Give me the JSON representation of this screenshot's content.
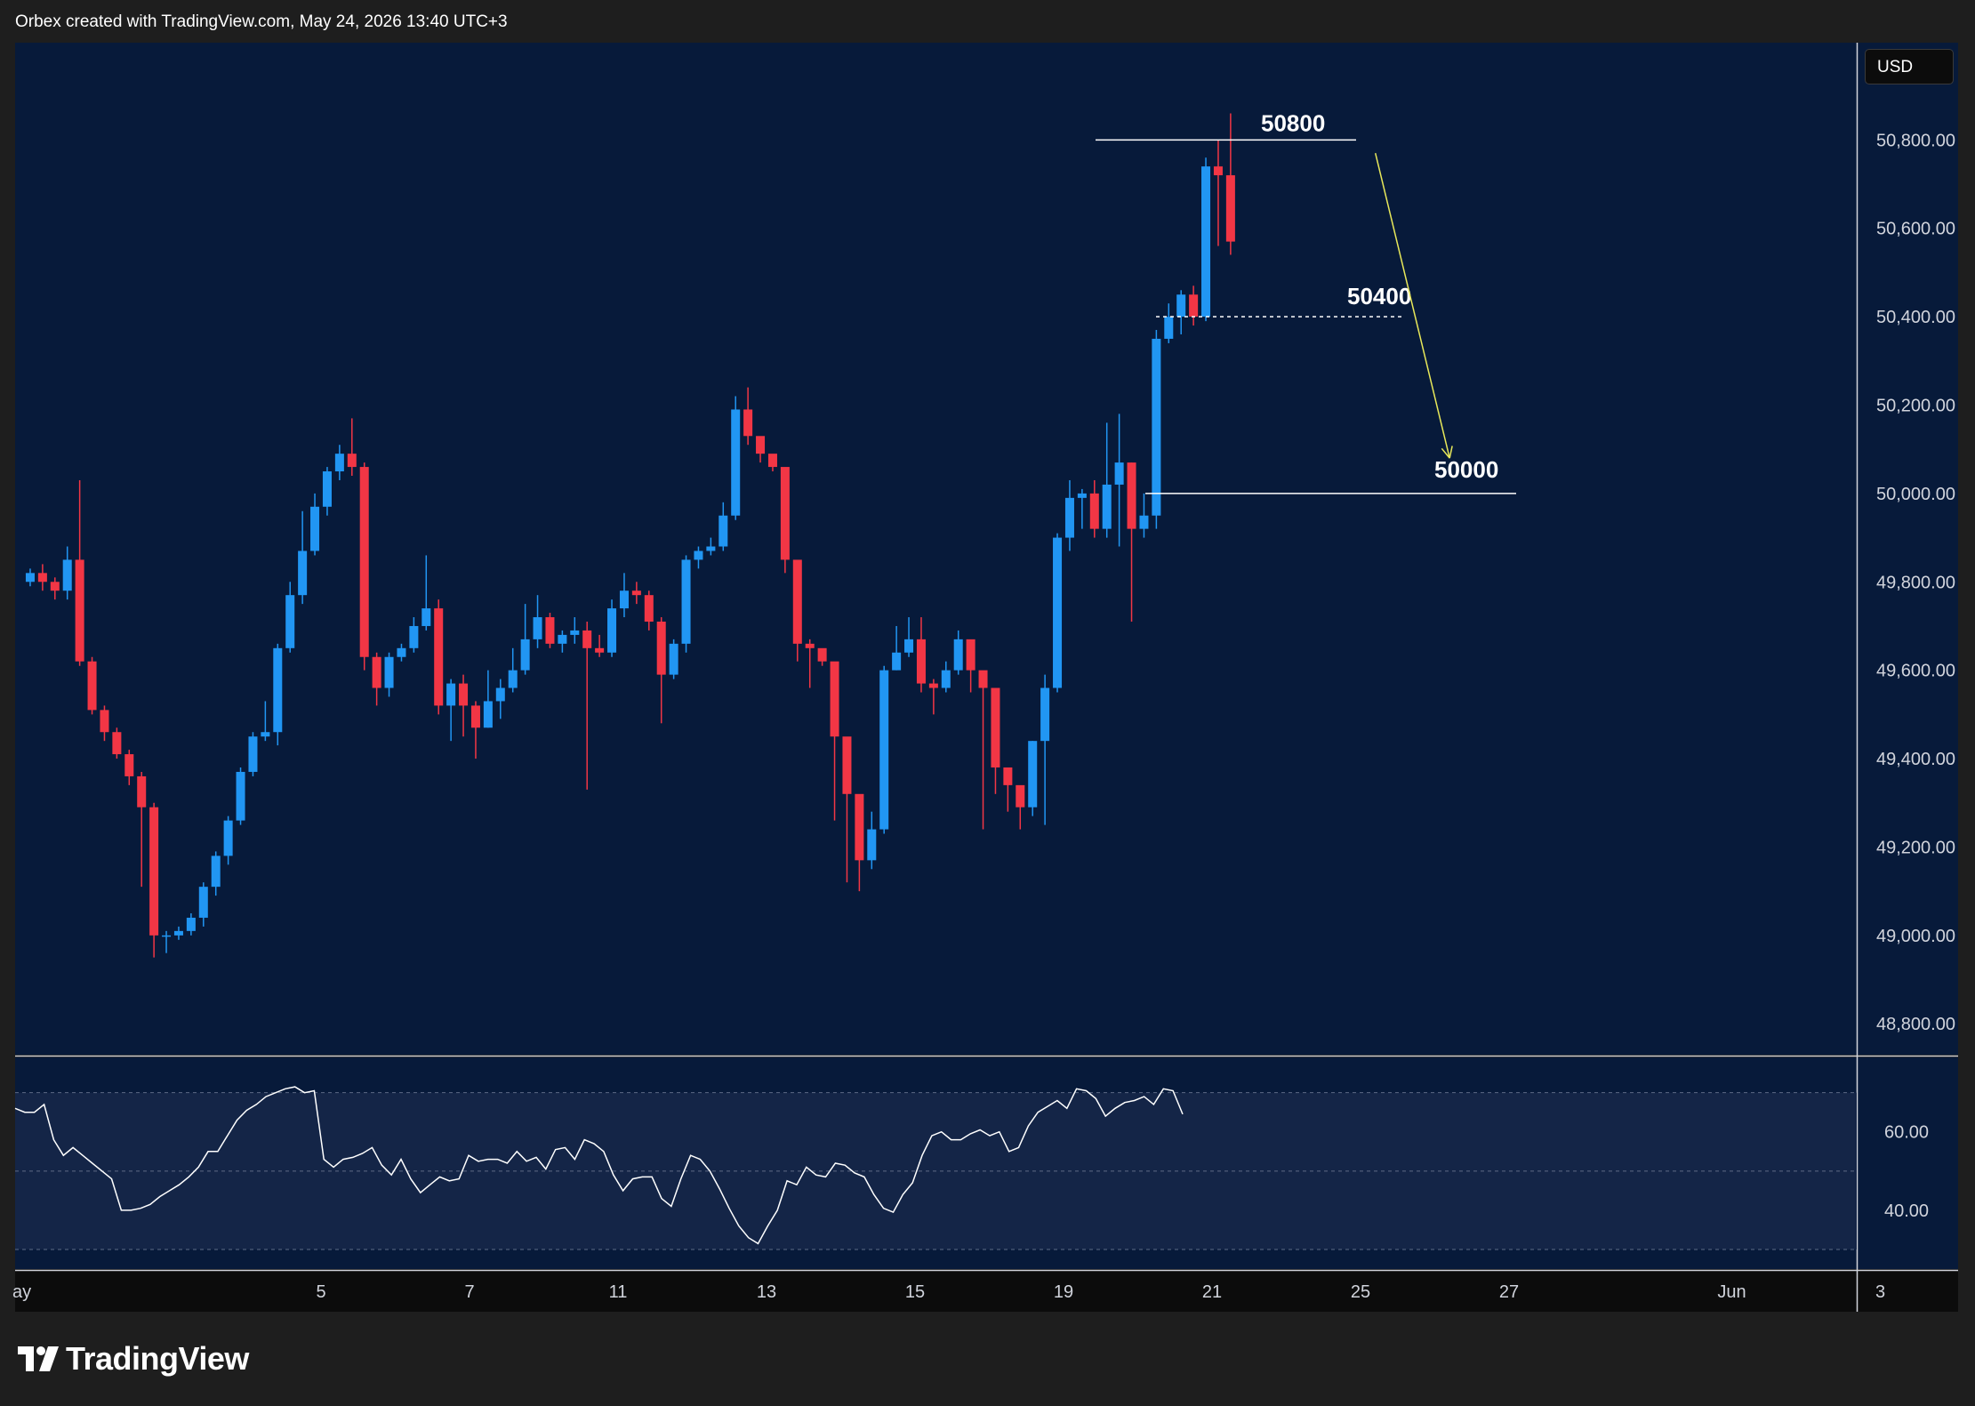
{
  "header": {
    "caption": "Orbex created with TradingView.com, May 24, 2026 13:40 UTC+3"
  },
  "currency": {
    "label": "USD"
  },
  "brand": {
    "name": "TradingView",
    "logo_icon": "tradingview-logo-icon"
  },
  "colors": {
    "background": "#1e1e1e",
    "pane": "#071a3a",
    "rsi_band": "#142547",
    "up": "#2196f3",
    "down": "#f23645",
    "arrow": "#e8e85a",
    "line": "#ffffff"
  },
  "chart_data": [
    {
      "type": "candlestick",
      "ylim": [
        48730,
        51020
      ],
      "y_ticks": [
        48800,
        49000,
        49200,
        49400,
        49600,
        49800,
        50000,
        50200,
        50400,
        50600,
        50800
      ],
      "y_tick_labels": [
        "48,800.00",
        "49,000.00",
        "49,200.00",
        "49,400.00",
        "49,600.00",
        "49,800.00",
        "50,000.00",
        "50,200.00",
        "50,400.00",
        "50,600.00",
        "50,800.00"
      ],
      "x_ticks": [
        {
          "label": "ay",
          "day": 1
        },
        {
          "label": "5",
          "day": 5
        },
        {
          "label": "7",
          "day": 7
        },
        {
          "label": "11",
          "day": 9
        },
        {
          "label": "13",
          "day": 11
        },
        {
          "label": "15",
          "day": 13
        },
        {
          "label": "19",
          "day": 15
        },
        {
          "label": "21",
          "day": 17
        },
        {
          "label": "25",
          "day": 19
        },
        {
          "label": "27",
          "day": 21
        },
        {
          "label": "Jun",
          "day": 24
        },
        {
          "label": "3",
          "day": 26
        }
      ],
      "candles_per_day": 6,
      "closes": [
        49820,
        49800,
        49780,
        49850,
        49620,
        49510,
        49460,
        49410,
        49360,
        49290,
        49000,
        49000,
        49010,
        49040,
        49110,
        49180,
        49260,
        49370,
        49450,
        49460,
        49650,
        49770,
        49870,
        49970,
        50050,
        50090,
        50060,
        49630,
        49560,
        49630,
        49650,
        49700,
        49740,
        49520,
        49570,
        49520,
        49470,
        49530,
        49560,
        49600,
        49670,
        49720,
        49660,
        49680,
        49690,
        49650,
        49640,
        49740,
        49780,
        49770,
        49710,
        49590,
        49660,
        49850,
        49870,
        49880,
        49950,
        50190,
        50130,
        50090,
        50060,
        49850,
        49660,
        49650,
        49620,
        49450,
        49320,
        49170,
        49240,
        49600,
        49640,
        49670,
        49570,
        49560,
        49600,
        49670,
        49600,
        49560,
        49380,
        49340,
        49290,
        49440,
        49560,
        49900,
        49990,
        50000,
        49920,
        50020,
        50070,
        49920,
        49950,
        50350,
        50400,
        50450,
        50400,
        50740,
        50720,
        50570
      ],
      "opens": [
        49800,
        49820,
        49800,
        49780,
        49850,
        49620,
        49510,
        49460,
        49410,
        49360,
        49290,
        49000,
        49000,
        49010,
        49040,
        49110,
        49180,
        49260,
        49370,
        49450,
        49460,
        49650,
        49770,
        49870,
        49970,
        50050,
        50090,
        50060,
        49630,
        49560,
        49630,
        49650,
        49700,
        49740,
        49520,
        49570,
        49520,
        49470,
        49530,
        49560,
        49600,
        49670,
        49720,
        49660,
        49680,
        49690,
        49650,
        49640,
        49740,
        49780,
        49770,
        49710,
        49590,
        49660,
        49850,
        49870,
        49880,
        49950,
        50190,
        50130,
        50090,
        50060,
        49850,
        49660,
        49650,
        49620,
        49450,
        49320,
        49170,
        49240,
        49600,
        49640,
        49670,
        49570,
        49560,
        49600,
        49670,
        49600,
        49560,
        49380,
        49340,
        49290,
        49440,
        49560,
        49900,
        49990,
        50000,
        49920,
        50020,
        50070,
        49920,
        49950,
        50350,
        50400,
        50450,
        50400,
        50740,
        50720
      ],
      "highs": [
        49830,
        49840,
        49810,
        49880,
        50030,
        49630,
        49520,
        49470,
        49420,
        49370,
        49300,
        49010,
        49020,
        49050,
        49120,
        49190,
        49270,
        49380,
        49460,
        49530,
        49660,
        49800,
        49960,
        50000,
        50060,
        50110,
        50170,
        50070,
        49640,
        49640,
        49660,
        49720,
        49860,
        49760,
        49580,
        49590,
        49530,
        49600,
        49580,
        49650,
        49750,
        49770,
        49730,
        49690,
        49720,
        49710,
        49680,
        49760,
        49820,
        49800,
        49780,
        49720,
        49670,
        49860,
        49880,
        49900,
        49980,
        50220,
        50240,
        50100,
        50080,
        49880,
        49690,
        49670,
        49630,
        49470,
        49340,
        49250,
        49280,
        49610,
        49700,
        49720,
        49720,
        49580,
        49620,
        49690,
        49630,
        49590,
        49390,
        49350,
        49310,
        49440,
        49590,
        49910,
        50030,
        50010,
        50030,
        50160,
        50180,
        50070,
        50000,
        50370,
        50430,
        50460,
        50470,
        50760,
        50800,
        50860
      ],
      "lows": [
        49790,
        49780,
        49760,
        49760,
        49610,
        49500,
        49440,
        49400,
        49340,
        49110,
        48950,
        48960,
        48990,
        49000,
        49020,
        49090,
        49160,
        49250,
        49360,
        49440,
        49430,
        49640,
        49750,
        49860,
        49950,
        50030,
        50040,
        49600,
        49520,
        49540,
        49620,
        49640,
        49690,
        49500,
        49440,
        49450,
        49400,
        49470,
        49490,
        49550,
        49590,
        49650,
        49650,
        49640,
        49660,
        49330,
        49630,
        49630,
        49720,
        49750,
        49690,
        49480,
        49580,
        49640,
        49830,
        49860,
        49870,
        49940,
        50110,
        50070,
        50050,
        49820,
        49620,
        49560,
        49610,
        49260,
        49120,
        49100,
        49150,
        49230,
        49600,
        49630,
        49550,
        49500,
        49550,
        49590,
        49550,
        49240,
        49320,
        49280,
        49240,
        49270,
        49250,
        49550,
        49870,
        49920,
        49900,
        49900,
        49880,
        49710,
        49900,
        49920,
        50340,
        50360,
        50380,
        50390,
        50560,
        50540
      ],
      "levels": [
        {
          "label": "50800",
          "value": 50800,
          "style": "solid"
        },
        {
          "label": "50400",
          "value": 50400,
          "style": "dashed"
        },
        {
          "label": "50000",
          "value": 50000,
          "style": "solid"
        }
      ],
      "arrow": {
        "from_day": 19.2,
        "from_value": 50770,
        "to_day": 20.2,
        "to_value": 50080
      }
    },
    {
      "type": "line",
      "ylim": [
        25,
        79
      ],
      "y_ticks": [
        40,
        60
      ],
      "y_tick_labels": [
        "40.00",
        "60.00"
      ],
      "band": [
        30,
        70
      ],
      "midline": 50,
      "values": [
        66,
        65,
        65,
        67,
        58,
        54,
        56,
        54,
        52,
        50,
        48,
        40,
        40,
        40.5,
        41.5,
        43.5,
        45,
        46.5,
        48.5,
        51,
        55,
        55,
        59,
        63,
        65.5,
        67,
        69,
        70,
        71,
        71.5,
        70,
        70.5,
        53,
        51,
        53,
        53.5,
        54.5,
        56,
        51.5,
        49,
        53,
        48,
        44.5,
        46.5,
        48.5,
        47.5,
        48,
        54,
        52.5,
        53,
        53,
        52,
        55,
        52.5,
        53.5,
        50.5,
        55.5,
        56,
        53,
        58,
        57,
        55,
        49,
        45,
        48,
        48.5,
        48.5,
        43,
        41,
        48,
        54,
        53,
        50,
        45.5,
        40.5,
        36,
        33,
        31.5,
        36,
        40,
        47.5,
        46.5,
        51,
        49,
        48.5,
        52,
        51.5,
        49.5,
        48.5,
        44,
        40.5,
        39.5,
        44,
        47,
        54,
        59,
        60,
        58,
        58,
        59.5,
        60.5,
        59,
        60,
        55,
        56,
        61.5,
        65,
        66.5,
        68,
        66,
        71,
        70.5,
        68.5,
        64,
        66,
        67.5,
        68,
        69,
        67,
        71,
        70.5,
        64.5
      ]
    }
  ]
}
